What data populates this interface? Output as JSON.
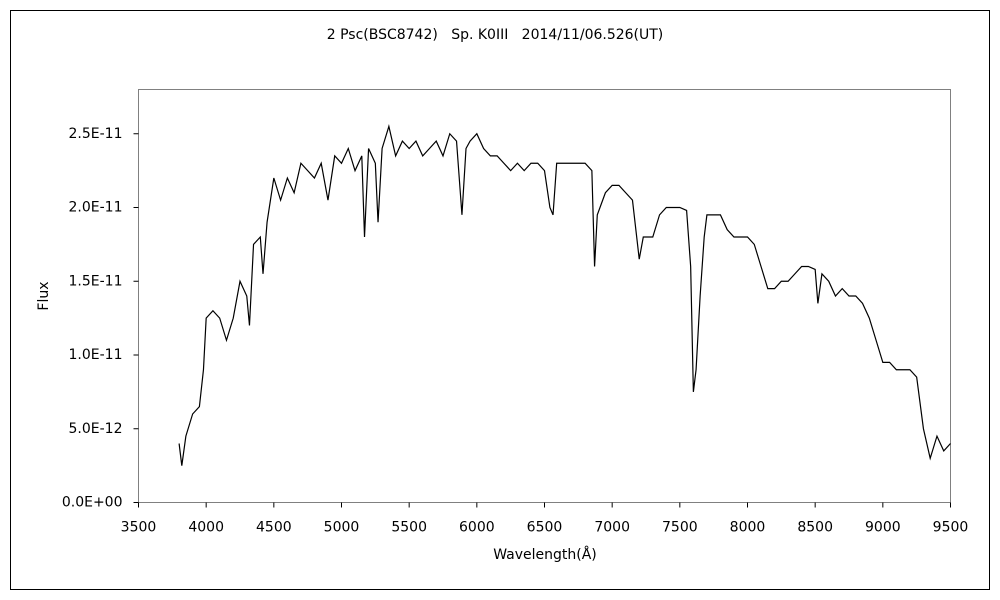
{
  "chart_data": {
    "type": "line",
    "title": "2 Psc(BSC8742)   Sp. K0III   2014/11/06.526(UT)",
    "x_label": "Wavelength(Å)",
    "y_label": "Flux",
    "xlim": [
      3500,
      9500
    ],
    "xticks": [
      3500,
      4000,
      4500,
      5000,
      5500,
      6000,
      6500,
      7000,
      7500,
      8000,
      8500,
      9000,
      9500
    ],
    "ylim": [
      0,
      2.8e-11
    ],
    "yticks": [
      {
        "value": 0,
        "label": "0.0E+00"
      },
      {
        "value": 5e-12,
        "label": "5.0E-12"
      },
      {
        "value": 1e-11,
        "label": "1.0E-11"
      },
      {
        "value": 1.5e-11,
        "label": "1.5E-11"
      },
      {
        "value": 2e-11,
        "label": "2.0E-11"
      },
      {
        "value": 2.5e-11,
        "label": "2.5E-11"
      }
    ],
    "grid": false,
    "color": "#000000",
    "x": [
      3800,
      3820,
      3850,
      3900,
      3950,
      3980,
      4000,
      4050,
      4100,
      4150,
      4200,
      4250,
      4300,
      4320,
      4350,
      4400,
      4420,
      4450,
      4500,
      4550,
      4600,
      4650,
      4700,
      4750,
      4800,
      4850,
      4900,
      4950,
      5000,
      5050,
      5100,
      5150,
      5170,
      5200,
      5250,
      5270,
      5300,
      5350,
      5400,
      5450,
      5500,
      5550,
      5600,
      5650,
      5700,
      5750,
      5800,
      5850,
      5890,
      5920,
      5950,
      6000,
      6050,
      6100,
      6150,
      6200,
      6250,
      6300,
      6350,
      6400,
      6450,
      6500,
      6540,
      6563,
      6590,
      6650,
      6700,
      6750,
      6800,
      6850,
      6870,
      6890,
      6950,
      7000,
      7050,
      7100,
      7150,
      7200,
      7230,
      7300,
      7350,
      7400,
      7450,
      7500,
      7550,
      7580,
      7600,
      7620,
      7650,
      7680,
      7700,
      7750,
      7800,
      7850,
      7900,
      7950,
      8000,
      8050,
      8100,
      8150,
      8200,
      8250,
      8300,
      8350,
      8400,
      8450,
      8500,
      8520,
      8550,
      8600,
      8650,
      8700,
      8750,
      8800,
      8850,
      8900,
      8950,
      9000,
      9050,
      9100,
      9150,
      9200,
      9250,
      9300,
      9350,
      9400,
      9450,
      9500
    ],
    "values": [
      4e-12,
      2.5e-12,
      4.5e-12,
      6e-12,
      6.5e-12,
      9e-12,
      1.25e-11,
      1.3e-11,
      1.25e-11,
      1.1e-11,
      1.25e-11,
      1.5e-11,
      1.4e-11,
      1.2e-11,
      1.75e-11,
      1.8e-11,
      1.55e-11,
      1.9e-11,
      2.2e-11,
      2.05e-11,
      2.2e-11,
      2.1e-11,
      2.3e-11,
      2.25e-11,
      2.2e-11,
      2.3e-11,
      2.05e-11,
      2.35e-11,
      2.3e-11,
      2.4e-11,
      2.25e-11,
      2.35e-11,
      1.8e-11,
      2.4e-11,
      2.3e-11,
      1.9e-11,
      2.4e-11,
      2.55e-11,
      2.35e-11,
      2.45e-11,
      2.4e-11,
      2.45e-11,
      2.35e-11,
      2.4e-11,
      2.45e-11,
      2.35e-11,
      2.5e-11,
      2.45e-11,
      1.95e-11,
      2.4e-11,
      2.45e-11,
      2.5e-11,
      2.4e-11,
      2.35e-11,
      2.35e-11,
      2.3e-11,
      2.25e-11,
      2.3e-11,
      2.25e-11,
      2.3e-11,
      2.3e-11,
      2.25e-11,
      2e-11,
      1.95e-11,
      2.3e-11,
      2.3e-11,
      2.3e-11,
      2.3e-11,
      2.3e-11,
      2.25e-11,
      1.6e-11,
      1.95e-11,
      2.1e-11,
      2.15e-11,
      2.15e-11,
      2.1e-11,
      2.05e-11,
      1.65e-11,
      1.8e-11,
      1.8e-11,
      1.95e-11,
      2e-11,
      2e-11,
      2e-11,
      1.98e-11,
      1.6e-11,
      7.5e-12,
      9e-12,
      1.4e-11,
      1.8e-11,
      1.95e-11,
      1.95e-11,
      1.95e-11,
      1.85e-11,
      1.8e-11,
      1.8e-11,
      1.8e-11,
      1.75e-11,
      1.6e-11,
      1.45e-11,
      1.45e-11,
      1.5e-11,
      1.5e-11,
      1.55e-11,
      1.6e-11,
      1.6e-11,
      1.58e-11,
      1.35e-11,
      1.55e-11,
      1.5e-11,
      1.4e-11,
      1.45e-11,
      1.4e-11,
      1.4e-11,
      1.35e-11,
      1.25e-11,
      1.1e-11,
      9.5e-12,
      9.5e-12,
      9e-12,
      9e-12,
      9e-12,
      8.5e-12,
      5e-12,
      3e-12,
      4.5e-12,
      3.5e-12,
      4e-12
    ]
  }
}
